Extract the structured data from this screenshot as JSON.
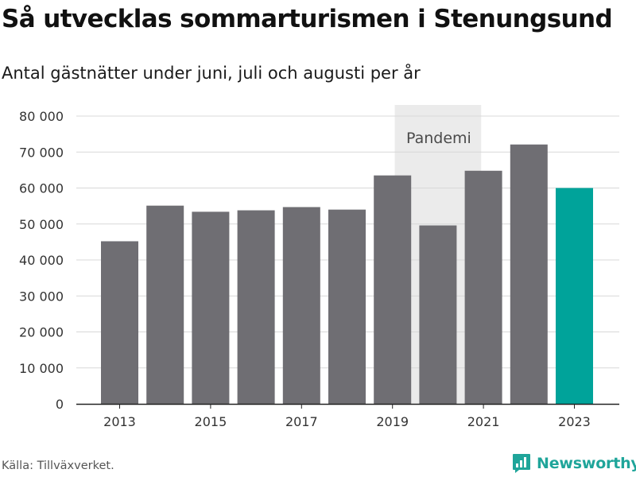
{
  "title": "Så utvecklas sommarturismen i Stenungsund",
  "subtitle": "Antal gästnätter under juni, juli och augusti per år",
  "source": "Källa: Tillväxverket.",
  "brand": "Newsworthy",
  "colors": {
    "bar": "#6f6e73",
    "highlight": "#00a39a",
    "band": "#ebebeb",
    "grid": "#d8d8d8",
    "axis": "#222222"
  },
  "chart_data": {
    "type": "bar",
    "title": "Så utvecklas sommarturismen i Stenungsund",
    "subtitle": "Antal gästnätter under juni, juli och augusti per år",
    "categories": [
      "2013",
      "2014",
      "2015",
      "2016",
      "2017",
      "2018",
      "2019",
      "2020",
      "2021",
      "2022",
      "2023"
    ],
    "values": [
      45200,
      55100,
      53400,
      53800,
      54700,
      54000,
      63500,
      49600,
      64800,
      72100,
      60000
    ],
    "highlight_category": "2023",
    "ylim": [
      0,
      80000
    ],
    "yticks": [
      0,
      10000,
      20000,
      30000,
      40000,
      50000,
      60000,
      70000,
      80000
    ],
    "ytick_labels": [
      "0",
      "10 000",
      "20 000",
      "30 000",
      "40 000",
      "50 000",
      "60 000",
      "70 000",
      "80 000"
    ],
    "xtick_labels": [
      "2013",
      "2015",
      "2017",
      "2019",
      "2021",
      "2023"
    ],
    "grid": true,
    "annotation": {
      "label": "Pandemi",
      "category": "2020"
    }
  }
}
